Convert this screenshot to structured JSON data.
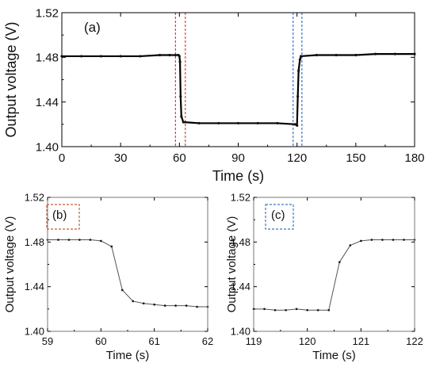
{
  "chart_data": [
    {
      "panel": "(a)",
      "type": "line",
      "xlabel": "Time (s)",
      "ylabel": "Output voltage (V)",
      "xlim": [
        0,
        180
      ],
      "ylim": [
        1.4,
        1.52
      ],
      "xticks": [
        "0",
        "30",
        "60",
        "90",
        "120",
        "150",
        "180"
      ],
      "yticks": [
        "1.40",
        "1.44",
        "1.48",
        "1.52"
      ],
      "x": [
        0,
        10,
        20,
        30,
        40,
        50,
        55,
        58,
        59.5,
        60,
        60.3,
        60.6,
        61,
        62,
        70,
        80,
        90,
        100,
        110,
        119,
        120,
        120.4,
        120.8,
        121.5,
        122,
        130,
        140,
        150,
        160,
        170,
        180
      ],
      "y": [
        1.481,
        1.481,
        1.481,
        1.481,
        1.481,
        1.482,
        1.482,
        1.482,
        1.482,
        1.481,
        1.476,
        1.445,
        1.427,
        1.422,
        1.421,
        1.421,
        1.421,
        1.421,
        1.421,
        1.42,
        1.419,
        1.445,
        1.468,
        1.478,
        1.481,
        1.482,
        1.482,
        1.482,
        1.483,
        1.483,
        1.483
      ],
      "highlight_boxes": [
        {
          "x": [
            58,
            63
          ],
          "color": "#d9442b"
        },
        {
          "x": [
            118,
            122.5
          ],
          "color": "#3d74c8"
        }
      ]
    },
    {
      "panel": "(b)",
      "type": "line",
      "xlabel": "Time (s)",
      "ylabel": "Output voltage (V)",
      "xlim": [
        59,
        62
      ],
      "ylim": [
        1.4,
        1.52
      ],
      "xticks": [
        "59",
        "60",
        "61",
        "62"
      ],
      "yticks": [
        "1.40",
        "1.44",
        "1.48",
        "1.52"
      ],
      "x": [
        59.0,
        59.2,
        59.4,
        59.6,
        59.8,
        60.0,
        60.2,
        60.4,
        60.6,
        60.8,
        61.0,
        61.2,
        61.4,
        61.6,
        61.8,
        62.0
      ],
      "y": [
        1.482,
        1.482,
        1.482,
        1.482,
        1.482,
        1.481,
        1.476,
        1.437,
        1.427,
        1.425,
        1.424,
        1.423,
        1.423,
        1.423,
        1.422,
        1.422
      ],
      "label_box_color": "#c0603a"
    },
    {
      "panel": "(c)",
      "type": "line",
      "xlabel": "Time (s)",
      "ylabel": "Output voltage (V)",
      "xlim": [
        119,
        122
      ],
      "ylim": [
        1.4,
        1.52
      ],
      "xticks": [
        "119",
        "120",
        "121",
        "122"
      ],
      "yticks": [
        "1.40",
        "1.44",
        "1.48",
        "1.52"
      ],
      "x": [
        119.0,
        119.2,
        119.4,
        119.6,
        119.8,
        120.0,
        120.2,
        120.4,
        120.6,
        120.8,
        121.0,
        121.2,
        121.4,
        121.6,
        121.8,
        122.0
      ],
      "y": [
        1.42,
        1.42,
        1.419,
        1.419,
        1.42,
        1.419,
        1.419,
        1.419,
        1.462,
        1.477,
        1.481,
        1.482,
        1.482,
        1.482,
        1.482,
        1.482
      ],
      "label_box_color": "#3d74c8"
    }
  ]
}
